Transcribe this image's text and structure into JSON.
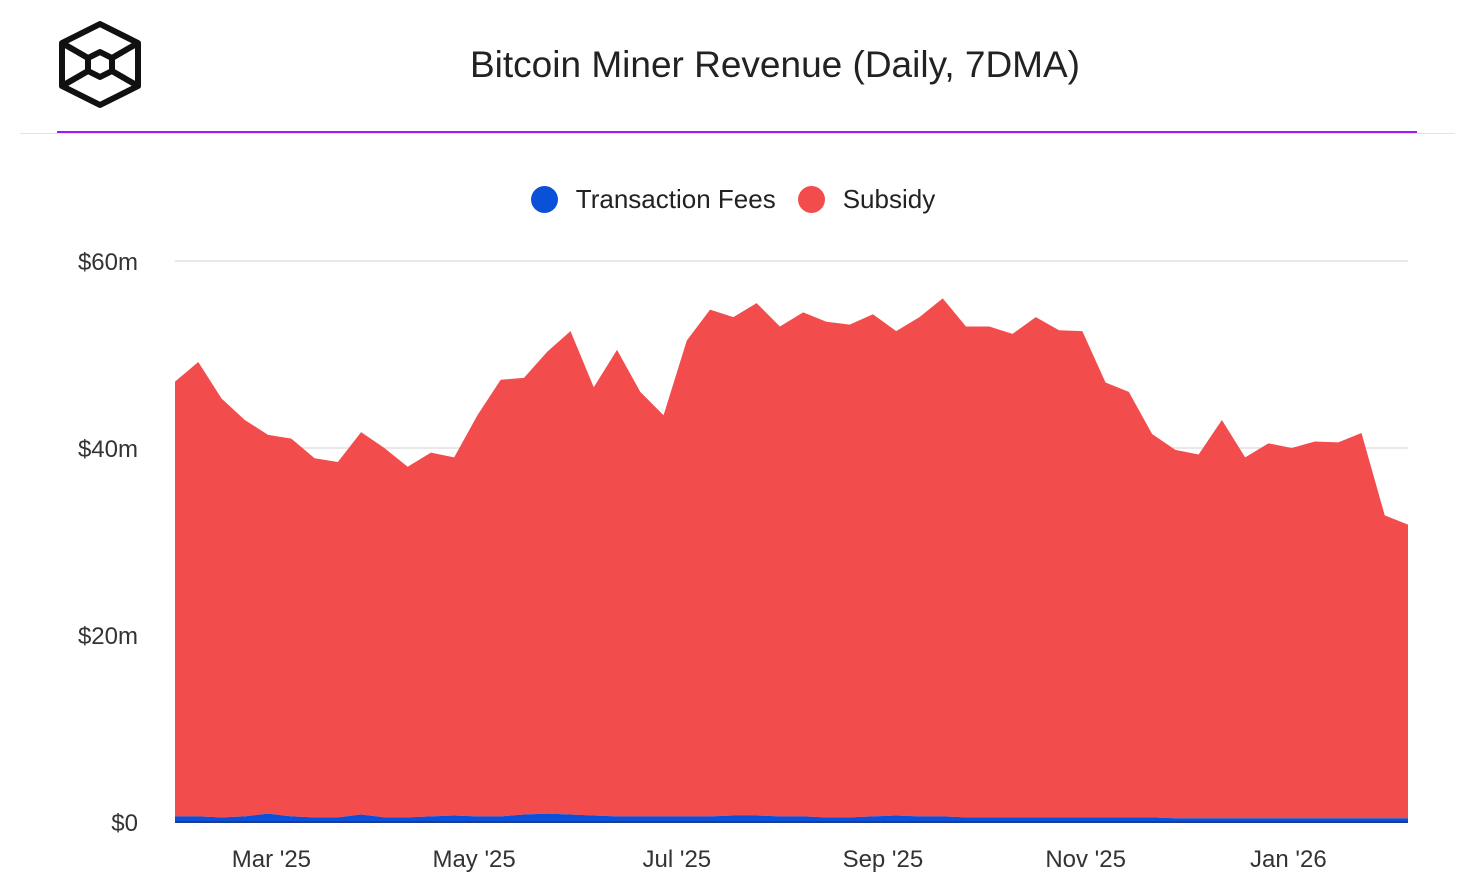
{
  "header": {
    "title": "Bitcoin Miner Revenue (Daily, 7DMA)",
    "logo": "cube-logo-icon"
  },
  "colors": {
    "fees": "#0b50d8",
    "subsidy": "#f24c4c",
    "accent": "#9b1cf5",
    "grid": "#e8e8e8"
  },
  "chart_data": {
    "type": "area",
    "stacked": true,
    "title": "Bitcoin Miner Revenue (Daily, 7DMA)",
    "legend_position": "top-center",
    "grid": true,
    "ylim": [
      0,
      60
    ],
    "y_unit": "$m",
    "y_ticks": [
      {
        "value": 0,
        "label": "$0"
      },
      {
        "value": 20,
        "label": "$20m"
      },
      {
        "value": 40,
        "label": "$40m"
      },
      {
        "value": 60,
        "label": "$60m"
      }
    ],
    "x_range": [
      "2025-01-31",
      "2026-02-06"
    ],
    "x_ticks": [
      {
        "date": "2025-03-01",
        "label": "Mar '25"
      },
      {
        "date": "2025-05-01",
        "label": "May '25"
      },
      {
        "date": "2025-07-01",
        "label": "Jul '25"
      },
      {
        "date": "2025-09-01",
        "label": "Sep '25"
      },
      {
        "date": "2025-11-01",
        "label": "Nov '25"
      },
      {
        "date": "2026-01-01",
        "label": "Jan '26"
      }
    ],
    "x": [
      "2025-01-31",
      "2025-02-07",
      "2025-02-14",
      "2025-02-21",
      "2025-02-28",
      "2025-03-07",
      "2025-03-14",
      "2025-03-21",
      "2025-03-28",
      "2025-04-04",
      "2025-04-11",
      "2025-04-18",
      "2025-04-25",
      "2025-05-02",
      "2025-05-09",
      "2025-05-16",
      "2025-05-23",
      "2025-05-30",
      "2025-06-06",
      "2025-06-13",
      "2025-06-20",
      "2025-06-27",
      "2025-07-04",
      "2025-07-11",
      "2025-07-18",
      "2025-07-25",
      "2025-08-01",
      "2025-08-08",
      "2025-08-15",
      "2025-08-22",
      "2025-08-29",
      "2025-09-05",
      "2025-09-12",
      "2025-09-19",
      "2025-09-26",
      "2025-10-03",
      "2025-10-10",
      "2025-10-17",
      "2025-10-24",
      "2025-10-31",
      "2025-11-07",
      "2025-11-14",
      "2025-11-21",
      "2025-11-28",
      "2025-12-05",
      "2025-12-12",
      "2025-12-19",
      "2025-12-26",
      "2026-01-02",
      "2026-01-09",
      "2026-01-16",
      "2026-01-23",
      "2026-01-30",
      "2026-02-06"
    ],
    "series": [
      {
        "name": "Transaction Fees",
        "color": "#0b50d8",
        "values": [
          0.6,
          0.6,
          0.5,
          0.6,
          0.9,
          0.6,
          0.5,
          0.5,
          0.8,
          0.5,
          0.5,
          0.6,
          0.7,
          0.6,
          0.6,
          0.8,
          0.9,
          0.8,
          0.7,
          0.6,
          0.6,
          0.6,
          0.6,
          0.6,
          0.7,
          0.7,
          0.6,
          0.6,
          0.5,
          0.5,
          0.6,
          0.7,
          0.6,
          0.6,
          0.5,
          0.5,
          0.5,
          0.5,
          0.5,
          0.5,
          0.5,
          0.5,
          0.5,
          0.4,
          0.4,
          0.4,
          0.4,
          0.4,
          0.4,
          0.4,
          0.4,
          0.4,
          0.4,
          0.4
        ]
      },
      {
        "name": "Subsidy",
        "color": "#f24c4c",
        "values": [
          46.5,
          48.6,
          44.8,
          42.4,
          40.5,
          40.4,
          38.4,
          38.0,
          40.9,
          39.5,
          37.5,
          38.9,
          38.3,
          42.9,
          46.7,
          46.7,
          49.4,
          51.7,
          45.8,
          49.9,
          45.4,
          42.9,
          50.9,
          54.2,
          53.3,
          54.8,
          52.4,
          53.9,
          53.0,
          52.7,
          53.7,
          51.8,
          53.4,
          55.4,
          52.5,
          52.5,
          51.7,
          53.5,
          52.1,
          52.0,
          46.5,
          45.5,
          41.0,
          39.4,
          38.9,
          42.6,
          38.6,
          40.1,
          39.6,
          40.3,
          40.2,
          41.2,
          32.4,
          31.4
        ]
      }
    ]
  }
}
